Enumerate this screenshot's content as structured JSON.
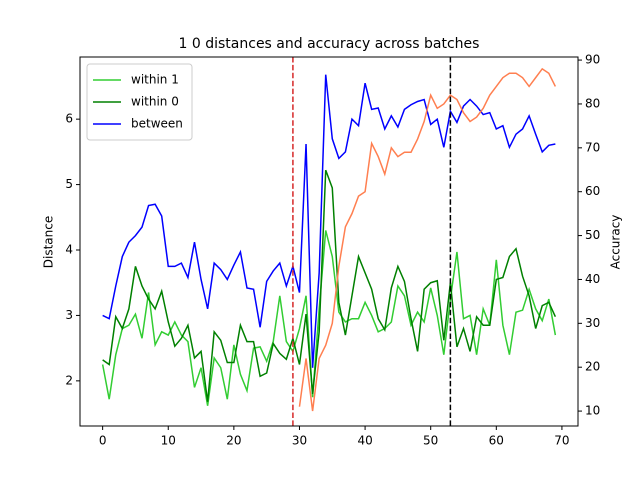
{
  "chart_data": {
    "type": "line",
    "title": "1 0 distances and accuracy across batches",
    "ylabel": "Distance",
    "y2label": "Accuracy",
    "x": [
      0,
      1,
      2,
      3,
      4,
      5,
      6,
      7,
      8,
      9,
      10,
      11,
      12,
      13,
      14,
      15,
      16,
      17,
      18,
      19,
      20,
      21,
      22,
      23,
      24,
      25,
      26,
      27,
      28,
      29,
      30,
      31,
      32,
      33,
      34,
      35,
      36,
      37,
      38,
      39,
      40,
      41,
      42,
      43,
      44,
      45,
      46,
      47,
      48,
      49,
      50,
      51,
      52,
      53,
      54,
      55,
      56,
      57,
      58,
      59,
      60,
      61,
      62,
      63,
      64,
      65,
      66,
      67,
      68,
      69
    ],
    "series": [
      {
        "name": "within 1",
        "color": "#32cd32",
        "values": [
          2.25,
          1.72,
          2.4,
          2.8,
          2.85,
          3.02,
          2.65,
          3.35,
          2.55,
          2.75,
          2.7,
          2.9,
          2.7,
          2.6,
          1.9,
          2.2,
          1.62,
          2.35,
          2.2,
          1.72,
          2.55,
          2.1,
          1.85,
          2.5,
          2.52,
          2.3,
          2.6,
          3.3,
          2.6,
          2.45,
          2.8,
          3.3,
          1.75,
          3.1,
          4.3,
          3.9,
          3.05,
          2.9,
          2.95,
          2.95,
          3.2,
          3.0,
          2.75,
          2.8,
          2.9,
          3.45,
          3.3,
          2.85,
          3.05,
          2.9,
          3.42,
          3.0,
          2.4,
          3.25,
          3.97,
          2.95,
          3.0,
          2.4,
          3.1,
          2.85,
          3.85,
          2.85,
          2.4,
          3.05,
          3.08,
          3.4,
          3.1,
          2.92,
          3.25,
          2.7
        ]
      },
      {
        "name": "within 0",
        "color": "#008000",
        "values": [
          2.32,
          2.25,
          2.98,
          2.8,
          3.1,
          3.75,
          3.45,
          3.25,
          3.1,
          3.37,
          2.9,
          2.53,
          2.65,
          2.85,
          2.35,
          2.45,
          1.68,
          2.75,
          2.62,
          2.28,
          2.28,
          2.85,
          2.6,
          2.6,
          2.07,
          2.12,
          2.57,
          2.42,
          2.33,
          2.65,
          2.25,
          3.02,
          1.8,
          2.75,
          5.22,
          4.95,
          3.2,
          2.7,
          3.3,
          3.9,
          3.65,
          3.4,
          2.95,
          2.78,
          3.42,
          3.75,
          3.52,
          2.95,
          2.45,
          3.4,
          3.5,
          3.53,
          2.62,
          3.5,
          2.52,
          2.8,
          2.45,
          2.98,
          2.85,
          2.85,
          3.55,
          3.58,
          3.9,
          4.02,
          3.6,
          3.3,
          2.8,
          3.15,
          3.2,
          2.98
        ]
      },
      {
        "name": "between",
        "color": "#0000ff",
        "values": [
          3.0,
          2.95,
          3.45,
          3.9,
          4.12,
          4.22,
          4.35,
          4.68,
          4.7,
          4.52,
          3.75,
          3.75,
          3.8,
          3.58,
          4.12,
          3.55,
          3.1,
          3.8,
          3.7,
          3.55,
          3.77,
          3.97,
          3.42,
          3.4,
          2.82,
          3.52,
          3.68,
          3.8,
          3.45,
          3.75,
          3.35,
          5.62,
          2.2,
          3.65,
          6.68,
          5.7,
          5.4,
          5.5,
          6.0,
          5.9,
          6.55,
          6.15,
          6.17,
          5.85,
          6.05,
          5.88,
          6.15,
          6.22,
          6.27,
          6.3,
          5.92,
          6.0,
          5.57,
          6.12,
          5.95,
          6.2,
          6.3,
          6.2,
          6.07,
          6.1,
          5.85,
          5.9,
          5.57,
          5.77,
          5.85,
          6.05,
          5.77,
          5.5,
          5.6,
          5.62
        ]
      },
      {
        "color": "#ff7f50",
        "axis": "y2",
        "values": [
          null,
          null,
          null,
          null,
          null,
          null,
          null,
          null,
          null,
          null,
          null,
          null,
          null,
          null,
          null,
          null,
          null,
          null,
          null,
          null,
          null,
          null,
          null,
          null,
          null,
          null,
          null,
          null,
          null,
          null,
          11,
          22,
          10,
          22,
          25,
          30,
          43,
          52,
          55,
          59,
          60,
          71,
          68,
          64,
          70,
          68,
          69,
          69,
          72,
          76,
          82,
          79,
          80,
          82,
          81,
          78,
          76,
          77,
          79,
          82,
          84,
          86,
          87,
          87,
          86,
          84,
          86,
          88,
          87,
          84
        ]
      }
    ],
    "vlines": [
      {
        "x": 29,
        "color": "#d62728"
      },
      {
        "x": 53,
        "color": "#000000"
      }
    ],
    "xlim": [
      -3.45,
      72.45
    ],
    "xticks": [
      0,
      10,
      20,
      30,
      40,
      50,
      60,
      70
    ],
    "ylim": [
      1.31,
      6.95
    ],
    "yticks": [
      2,
      3,
      4,
      5,
      6
    ],
    "y2lim": [
      6.6,
      90.7
    ],
    "y2ticks": [
      10,
      20,
      30,
      40,
      50,
      60,
      70,
      80,
      90
    ],
    "legend": "upper left"
  }
}
